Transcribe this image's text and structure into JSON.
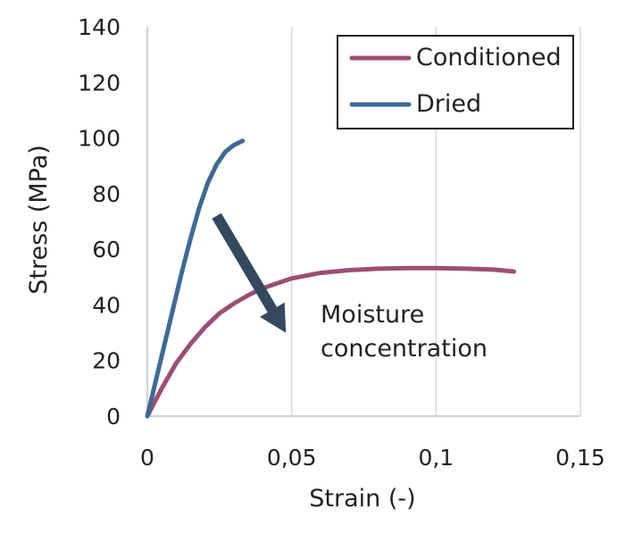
{
  "chart_data": {
    "type": "line",
    "xlabel": "Strain (-)",
    "ylabel": "Stress (MPa)",
    "xlim": [
      0,
      0.15
    ],
    "ylim": [
      0,
      140
    ],
    "x_ticks": [
      0,
      0.05,
      0.1,
      0.15
    ],
    "x_tick_labels": [
      "0",
      "0,05",
      "0,1",
      "0,15"
    ],
    "y_ticks": [
      0,
      20,
      40,
      60,
      80,
      100,
      120,
      140
    ],
    "y_tick_labels": [
      "0",
      "20",
      "40",
      "60",
      "80",
      "100",
      "120",
      "140"
    ],
    "grid": "vertical",
    "legend_position": "top-right",
    "series": [
      {
        "name": "Conditioned",
        "color": "#9b4f73",
        "x": [
          0,
          0.005,
          0.01,
          0.015,
          0.02,
          0.025,
          0.03,
          0.035,
          0.04,
          0.05,
          0.06,
          0.07,
          0.08,
          0.09,
          0.1,
          0.11,
          0.12,
          0.127
        ],
        "y": [
          0,
          10,
          19,
          26,
          32,
          37,
          40.5,
          43.5,
          46,
          49.5,
          51.5,
          52.5,
          53,
          53.2,
          53.2,
          53,
          52.7,
          52
        ]
      },
      {
        "name": "Dried",
        "color": "#3d6a94",
        "x": [
          0,
          0.003,
          0.006,
          0.009,
          0.012,
          0.015,
          0.018,
          0.021,
          0.024,
          0.027,
          0.03,
          0.033
        ],
        "y": [
          0,
          13,
          26,
          39,
          52,
          64,
          75,
          84,
          90.5,
          95,
          97.5,
          99
        ]
      }
    ],
    "annotation": {
      "lines": [
        "Moisture",
        "concentration"
      ],
      "arrow_from": [
        0.024,
        72
      ],
      "arrow_to": [
        0.048,
        30
      ],
      "arrow_color": "#34495e"
    }
  }
}
